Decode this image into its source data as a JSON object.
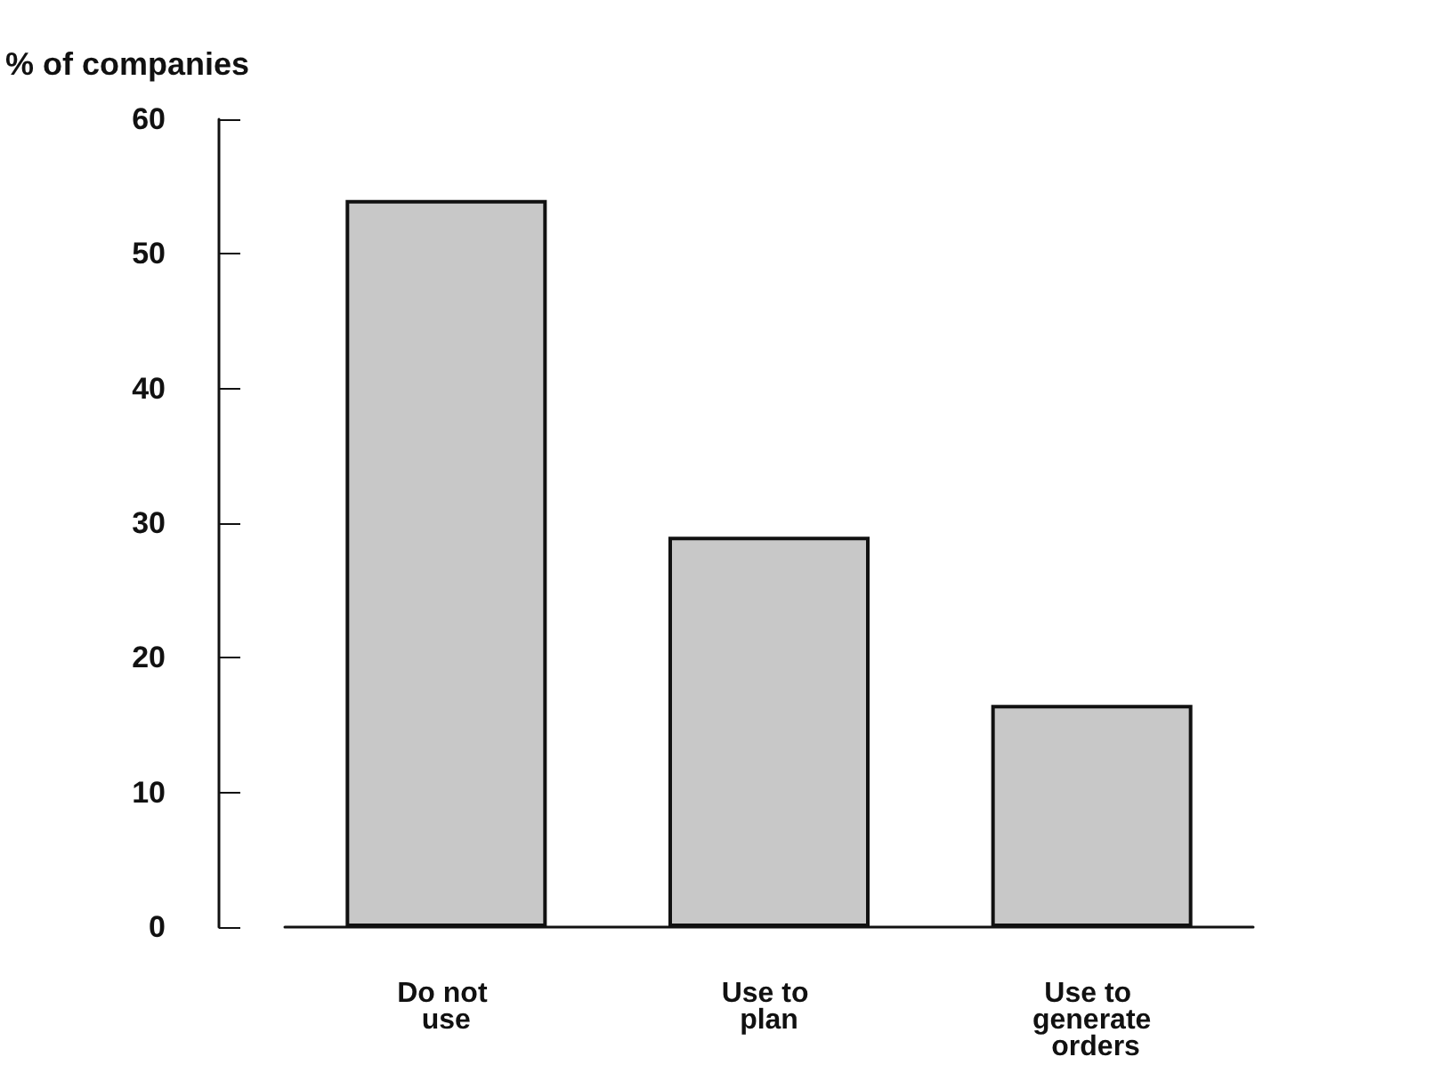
{
  "chart_data": {
    "type": "bar",
    "ylabel": "% of companies",
    "categories": [
      "Do not use",
      "Use to plan",
      "Use to generate orders"
    ],
    "values": [
      54,
      29,
      16.5
    ],
    "color": "#c8c8c8",
    "ylim": [
      0,
      60
    ],
    "yticks": [
      0,
      10,
      20,
      30,
      40,
      50,
      60
    ]
  }
}
